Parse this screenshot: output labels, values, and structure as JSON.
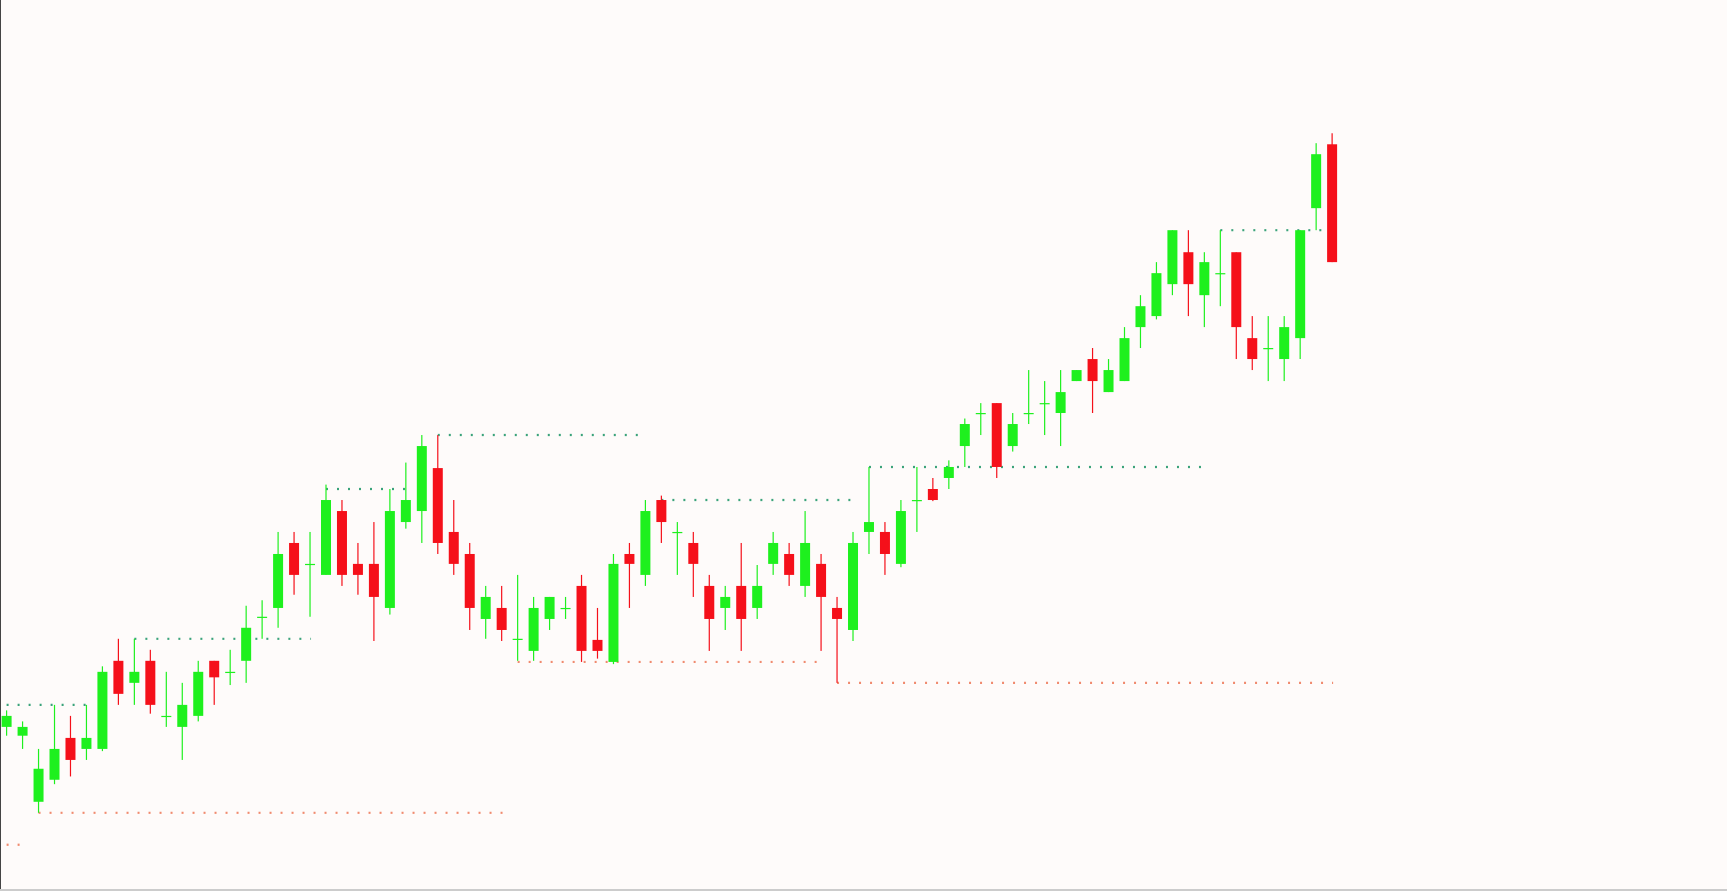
{
  "chart_data": {
    "type": "candlestick",
    "ylim": [
      0,
      809
    ],
    "up_color": "#1ef01e",
    "down_color": "#f5101a",
    "resistance_color": "#3aa37a",
    "support_color": "#f08a6e",
    "open": [
      149,
      141,
      81,
      101,
      139,
      129,
      129,
      209,
      189,
      209,
      159,
      149,
      159,
      209,
      199,
      209,
      249,
      257,
      316,
      297,
      287,
      345,
      297,
      297,
      257,
      335,
      345,
      384,
      326,
      306,
      247,
      257,
      229,
      218,
      247,
      257,
      277,
      228,
      208,
      306,
      287,
      355,
      326,
      316,
      277,
      257,
      277,
      257,
      297,
      306,
      277,
      297,
      257,
      237,
      326,
      326,
      297,
      355,
      365,
      375,
      404,
      434,
      443,
      404,
      434,
      443,
      434,
      463,
      483,
      453,
      463,
      512,
      522,
      551,
      580,
      541,
      561,
      580,
      502,
      493,
      483,
      502,
      620,
      678
    ],
    "high": [
      164,
      154,
      129,
      169,
      159,
      169,
      204,
      229,
      229,
      219,
      199,
      189,
      209,
      209,
      219,
      259,
      264,
      326,
      326,
      326,
      369,
      355,
      316,
      335,
      365,
      389,
      414,
      414,
      355,
      316,
      277,
      277,
      287,
      267,
      267,
      267,
      287,
      257,
      306,
      316,
      355,
      359,
      335,
      326,
      287,
      277,
      316,
      296,
      326,
      316,
      345,
      306,
      267,
      326,
      385,
      335,
      355,
      385,
      375,
      391,
      429,
      443,
      443,
      434,
      473,
      463,
      473,
      473,
      493,
      483,
      512,
      541,
      571,
      600,
      600,
      580,
      600,
      580,
      522,
      522,
      522,
      600,
      679,
      688
    ],
    "low": [
      141,
      129,
      71,
      97,
      104,
      119,
      127,
      169,
      169,
      161,
      149,
      119,
      154,
      169,
      187,
      189,
      229,
      239,
      269,
      249,
      287,
      277,
      269,
      227,
      251,
      329,
      316,
      306,
      287,
      237,
      229,
      227,
      209,
      209,
      237,
      247,
      208,
      211,
      206,
      257,
      277,
      316,
      287,
      267,
      218,
      237,
      218,
      247,
      287,
      277,
      267,
      218,
      189,
      227,
      306,
      287,
      294,
      326,
      354,
      365,
      385,
      414,
      375,
      399,
      424,
      414,
      404,
      463,
      434,
      453,
      463,
      493,
      519,
      541,
      522,
      512,
      531,
      483,
      473,
      463,
      463,
      483,
      600,
      571
    ],
    "close": [
      159,
      149,
      111,
      129,
      119,
      139,
      199,
      179,
      199,
      169,
      159,
      169,
      199,
      194,
      199,
      239,
      249,
      306,
      287,
      297,
      355,
      287,
      287,
      267,
      345,
      355,
      404,
      316,
      297,
      257,
      267,
      237,
      229,
      257,
      267,
      257,
      218,
      218,
      297,
      297,
      345,
      335,
      326,
      297,
      247,
      267,
      247,
      277,
      316,
      287,
      316,
      267,
      247,
      316,
      335,
      306,
      345,
      355,
      355,
      385,
      424,
      434,
      385,
      424,
      434,
      443,
      453,
      473,
      463,
      473,
      502,
      531,
      561,
      600,
      551,
      571,
      561,
      512,
      483,
      493,
      512,
      600,
      669,
      571
    ],
    "levels": [
      {
        "kind": "resistance",
        "value": 169,
        "from": 0,
        "to": 5
      },
      {
        "kind": "resistance",
        "value": 229,
        "from": 8,
        "to": 19
      },
      {
        "kind": "resistance",
        "value": 365,
        "from": 20,
        "to": 25
      },
      {
        "kind": "resistance",
        "value": 414,
        "from": 27,
        "to": 40
      },
      {
        "kind": "resistance",
        "value": 355,
        "from": 41,
        "to": 53
      },
      {
        "kind": "resistance",
        "value": 385,
        "from": 54,
        "to": 75
      },
      {
        "kind": "resistance",
        "value": 600,
        "from": 76,
        "to": 83
      },
      {
        "kind": "support",
        "value": 42,
        "from": 0,
        "to": 1
      },
      {
        "kind": "support",
        "value": 71,
        "from": 2,
        "to": 31
      },
      {
        "kind": "support",
        "value": 208,
        "from": 32,
        "to": 51
      },
      {
        "kind": "support",
        "value": 189,
        "from": 52,
        "to": 83
      }
    ]
  }
}
